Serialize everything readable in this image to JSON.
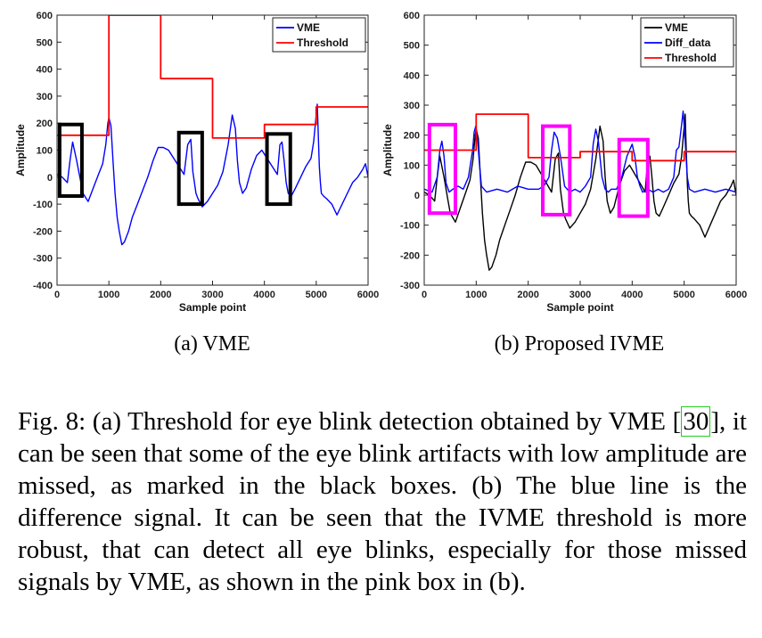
{
  "chart_data": [
    {
      "type": "line",
      "subcaption": "(a) VME",
      "xlabel": "Sample point",
      "ylabel": "Amplitude",
      "xlim": [
        0,
        6000
      ],
      "ylim": [
        -400,
        600
      ],
      "xticks": [
        0,
        1000,
        2000,
        3000,
        4000,
        5000,
        6000
      ],
      "yticks": [
        -400,
        -300,
        -200,
        -100,
        0,
        100,
        200,
        300,
        400,
        500,
        600
      ],
      "legend_position": "top-right",
      "series": [
        {
          "name": "VME",
          "color": "#0000ff",
          "x": [
            0,
            100,
            200,
            250,
            300,
            380,
            420,
            460,
            500,
            600,
            700,
            800,
            880,
            940,
            980,
            1000,
            1040,
            1080,
            1120,
            1160,
            1200,
            1250,
            1300,
            1380,
            1450,
            1550,
            1650,
            1750,
            1850,
            1950,
            2050,
            2150,
            2250,
            2350,
            2450,
            2520,
            2580,
            2620,
            2680,
            2720,
            2800,
            2900,
            3000,
            3100,
            3200,
            3300,
            3380,
            3440,
            3480,
            3520,
            3580,
            3650,
            3750,
            3850,
            3950,
            4050,
            4150,
            4250,
            4300,
            4340,
            4380,
            4420,
            4460,
            4520,
            4600,
            4700,
            4800,
            4900,
            4950,
            5000,
            5020,
            5040,
            5060,
            5080,
            5100,
            5140,
            5200,
            5300,
            5400,
            5500,
            5600,
            5700,
            5800,
            5900,
            5950,
            6000
          ],
          "values": [
            10,
            0,
            -20,
            60,
            130,
            60,
            20,
            -20,
            -60,
            -90,
            -40,
            10,
            50,
            120,
            200,
            220,
            190,
            60,
            -60,
            -150,
            -200,
            -250,
            -240,
            -200,
            -150,
            -100,
            -50,
            0,
            60,
            110,
            110,
            100,
            70,
            40,
            10,
            120,
            140,
            20,
            -60,
            -80,
            -110,
            -90,
            -60,
            -30,
            20,
            120,
            230,
            180,
            60,
            -20,
            -60,
            -40,
            30,
            80,
            100,
            70,
            40,
            10,
            120,
            130,
            60,
            -20,
            -60,
            -70,
            -40,
            0,
            40,
            70,
            130,
            230,
            270,
            150,
            40,
            -20,
            -60,
            -70,
            -80,
            -100,
            -140,
            -100,
            -60,
            -20,
            0,
            30,
            50,
            0
          ]
        },
        {
          "name": "Threshold",
          "color": "#ff0000",
          "x": [
            0,
            1000,
            1000,
            2000,
            2000,
            3000,
            3000,
            4000,
            4000,
            5000,
            5000,
            6000
          ],
          "values": [
            155,
            155,
            600,
            600,
            365,
            365,
            145,
            145,
            195,
            195,
            260,
            260
          ]
        }
      ],
      "boxes": {
        "color": "#000000",
        "regions": [
          {
            "x": [
              50,
              480
            ],
            "y": [
              -70,
              195
            ]
          },
          {
            "x": [
              2350,
              2800
            ],
            "y": [
              -100,
              165
            ]
          },
          {
            "x": [
              4050,
              4500
            ],
            "y": [
              -100,
              160
            ]
          }
        ]
      }
    },
    {
      "type": "line",
      "subcaption": "(b) Proposed IVME",
      "xlabel": "Sample point",
      "ylabel": "Amplitude",
      "xlim": [
        0,
        6000
      ],
      "ylim": [
        -300,
        600
      ],
      "xticks": [
        0,
        1000,
        2000,
        3000,
        4000,
        5000,
        6000
      ],
      "yticks": [
        -300,
        -200,
        -100,
        0,
        100,
        200,
        300,
        400,
        500,
        600
      ],
      "legend_position": "top-right",
      "series": [
        {
          "name": "VME",
          "color": "#000000",
          "x": [
            0,
            100,
            200,
            250,
            300,
            380,
            420,
            460,
            500,
            600,
            700,
            800,
            880,
            940,
            980,
            1000,
            1040,
            1080,
            1120,
            1160,
            1200,
            1250,
            1300,
            1380,
            1450,
            1550,
            1650,
            1750,
            1850,
            1950,
            2050,
            2150,
            2250,
            2350,
            2450,
            2520,
            2580,
            2620,
            2680,
            2720,
            2800,
            2900,
            3000,
            3100,
            3200,
            3300,
            3380,
            3440,
            3480,
            3520,
            3580,
            3650,
            3750,
            3850,
            3950,
            4050,
            4150,
            4250,
            4300,
            4340,
            4380,
            4420,
            4460,
            4520,
            4600,
            4700,
            4800,
            4900,
            4950,
            5000,
            5020,
            5040,
            5060,
            5080,
            5100,
            5140,
            5200,
            5300,
            5400,
            5500,
            5600,
            5700,
            5800,
            5900,
            5950,
            6000
          ],
          "values": [
            10,
            0,
            -20,
            60,
            130,
            60,
            20,
            -20,
            -60,
            -90,
            -40,
            10,
            50,
            120,
            200,
            220,
            190,
            60,
            -60,
            -150,
            -200,
            -250,
            -240,
            -200,
            -150,
            -100,
            -50,
            0,
            60,
            110,
            110,
            100,
            70,
            40,
            10,
            120,
            140,
            20,
            -60,
            -80,
            -110,
            -90,
            -60,
            -30,
            20,
            120,
            230,
            180,
            60,
            -20,
            -60,
            -40,
            30,
            80,
            100,
            70,
            40,
            10,
            120,
            130,
            60,
            -20,
            -60,
            -70,
            -40,
            0,
            40,
            70,
            130,
            230,
            270,
            150,
            40,
            -20,
            -60,
            -70,
            -80,
            -100,
            -140,
            -100,
            -60,
            -20,
            0,
            30,
            50,
            0
          ]
        },
        {
          "name": "Diff_data",
          "color": "#0000ff",
          "x": [
            0,
            150,
            250,
            300,
            340,
            380,
            420,
            480,
            550,
            650,
            750,
            850,
            930,
            960,
            990,
            1020,
            1060,
            1100,
            1200,
            1400,
            1600,
            1800,
            2000,
            2200,
            2300,
            2400,
            2450,
            2500,
            2560,
            2620,
            2700,
            2800,
            2900,
            3000,
            3100,
            3200,
            3250,
            3300,
            3350,
            3420,
            3480,
            3540,
            3600,
            3700,
            3800,
            3900,
            4000,
            4050,
            4100,
            4150,
            4200,
            4300,
            4400,
            4500,
            4600,
            4700,
            4800,
            4850,
            4900,
            4940,
            4980,
            5020,
            5060,
            5100,
            5200,
            5400,
            5600,
            5800,
            6000
          ],
          "values": [
            20,
            10,
            60,
            150,
            180,
            130,
            40,
            10,
            20,
            30,
            20,
            60,
            150,
            210,
            230,
            200,
            110,
            30,
            10,
            20,
            10,
            30,
            20,
            20,
            30,
            60,
            150,
            210,
            190,
            130,
            30,
            10,
            20,
            10,
            30,
            60,
            170,
            220,
            180,
            60,
            20,
            10,
            20,
            20,
            60,
            130,
            170,
            130,
            60,
            30,
            10,
            20,
            10,
            20,
            10,
            20,
            60,
            150,
            160,
            220,
            280,
            180,
            60,
            20,
            10,
            20,
            10,
            20,
            10
          ]
        },
        {
          "name": "Threshold",
          "color": "#ff0000",
          "x": [
            0,
            1000,
            1000,
            2000,
            2000,
            3000,
            3000,
            4000,
            4000,
            5000,
            5000,
            6000
          ],
          "values": [
            150,
            150,
            270,
            270,
            125,
            125,
            145,
            145,
            115,
            115,
            145,
            145
          ]
        }
      ],
      "boxes": {
        "color": "#ff00ff",
        "regions": [
          {
            "x": [
              100,
              600
            ],
            "y": [
              -60,
              235
            ]
          },
          {
            "x": [
              2280,
              2800
            ],
            "y": [
              -65,
              230
            ]
          },
          {
            "x": [
              3750,
              4300
            ],
            "y": [
              -70,
              185
            ]
          }
        ]
      }
    }
  ],
  "caption": {
    "lead": "Fig. 8: (a) Threshold for eye blink detection obtained by VME [",
    "ref": "30",
    "rest": "], it can be seen that some of the eye blink artifacts with low amplitude are missed, as marked in the black boxes. (b) The blue line is the difference signal. It can be seen that the IVME threshold is more robust, that can detect all eye blinks, especially for those missed signals by VME, as shown in the pink box in (b)."
  }
}
